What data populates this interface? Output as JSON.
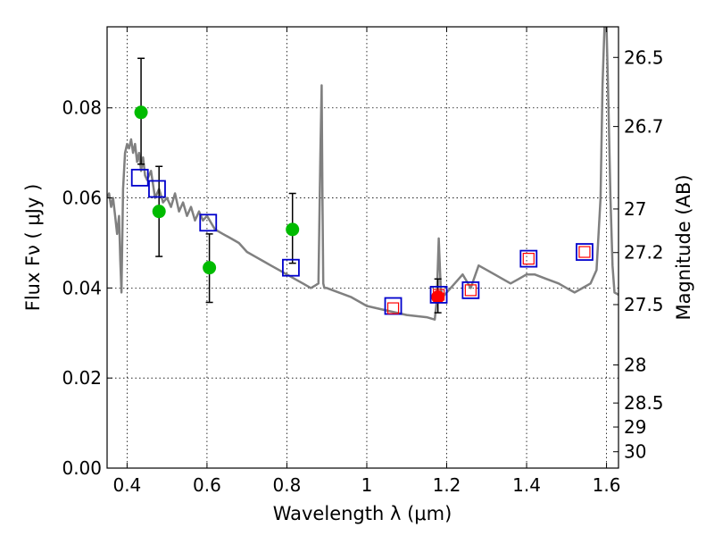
{
  "chart_data": {
    "type": "scatter",
    "xlabel": "Wavelength  λ (μm)",
    "ylabel": "Flux  Fν  ( μJy )",
    "ylabel_right": "Magnitude (AB)",
    "xlim": [
      0.35,
      1.63
    ],
    "ylim": [
      0.0,
      0.098
    ],
    "grid": true,
    "x_ticks": [
      {
        "value": 0.4,
        "label": "0.4"
      },
      {
        "value": 0.6,
        "label": "0.6"
      },
      {
        "value": 0.8,
        "label": "0.8"
      },
      {
        "value": 1.0,
        "label": "1"
      },
      {
        "value": 1.2,
        "label": "1.2"
      },
      {
        "value": 1.4,
        "label": "1.4"
      },
      {
        "value": 1.6,
        "label": "1.6"
      }
    ],
    "y_ticks": [
      {
        "value": 0.0,
        "label": "0.00"
      },
      {
        "value": 0.02,
        "label": "0.02"
      },
      {
        "value": 0.04,
        "label": "0.04"
      },
      {
        "value": 0.06,
        "label": "0.06"
      },
      {
        "value": 0.08,
        "label": "0.08"
      }
    ],
    "right_ticks": [
      {
        "value": 26.5,
        "label": "26.5"
      },
      {
        "value": 26.7,
        "label": "26.7"
      },
      {
        "value": 27.0,
        "label": "27"
      },
      {
        "value": 27.2,
        "label": "27.2"
      },
      {
        "value": 27.5,
        "label": "27.5"
      },
      {
        "value": 28.0,
        "label": "28"
      },
      {
        "value": 28.5,
        "label": "28.5"
      },
      {
        "value": 29.0,
        "label": "29"
      },
      {
        "value": 30.0,
        "label": "30"
      }
    ],
    "series": [
      {
        "name": "model_spectrum",
        "kind": "line",
        "color": "#808080",
        "x": [
          0.35,
          0.355,
          0.36,
          0.365,
          0.37,
          0.375,
          0.38,
          0.383,
          0.386,
          0.39,
          0.395,
          0.4,
          0.405,
          0.41,
          0.415,
          0.42,
          0.425,
          0.43,
          0.435,
          0.44,
          0.445,
          0.45,
          0.46,
          0.47,
          0.48,
          0.49,
          0.5,
          0.51,
          0.52,
          0.53,
          0.54,
          0.55,
          0.56,
          0.57,
          0.58,
          0.59,
          0.6,
          0.62,
          0.64,
          0.66,
          0.68,
          0.7,
          0.72,
          0.74,
          0.76,
          0.78,
          0.8,
          0.82,
          0.84,
          0.86,
          0.87,
          0.879,
          0.884,
          0.887,
          0.889,
          0.891,
          0.894,
          0.9,
          0.93,
          0.96,
          1.0,
          1.05,
          1.1,
          1.15,
          1.17,
          1.175,
          1.18,
          1.185,
          1.19,
          1.2,
          1.22,
          1.24,
          1.26,
          1.28,
          1.3,
          1.32,
          1.34,
          1.36,
          1.38,
          1.4,
          1.42,
          1.45,
          1.48,
          1.5,
          1.52,
          1.54,
          1.56,
          1.575,
          1.585,
          1.59,
          1.595,
          1.6,
          1.605,
          1.61,
          1.615,
          1.62,
          1.63
        ],
        "y": [
          0.06,
          0.061,
          0.058,
          0.06,
          0.056,
          0.052,
          0.056,
          0.046,
          0.039,
          0.062,
          0.07,
          0.072,
          0.071,
          0.073,
          0.07,
          0.072,
          0.068,
          0.07,
          0.066,
          0.069,
          0.065,
          0.064,
          0.066,
          0.06,
          0.062,
          0.059,
          0.06,
          0.058,
          0.061,
          0.057,
          0.059,
          0.056,
          0.058,
          0.055,
          0.057,
          0.055,
          0.056,
          0.053,
          0.052,
          0.051,
          0.05,
          0.048,
          0.047,
          0.046,
          0.045,
          0.044,
          0.043,
          0.042,
          0.041,
          0.04,
          0.0405,
          0.041,
          0.07,
          0.085,
          0.06,
          0.041,
          0.04,
          0.04,
          0.039,
          0.038,
          0.036,
          0.035,
          0.034,
          0.0335,
          0.033,
          0.037,
          0.051,
          0.04,
          0.038,
          0.039,
          0.041,
          0.043,
          0.04,
          0.045,
          0.044,
          0.043,
          0.042,
          0.041,
          0.042,
          0.043,
          0.043,
          0.042,
          0.041,
          0.04,
          0.039,
          0.04,
          0.041,
          0.044,
          0.06,
          0.085,
          0.098,
          0.098,
          0.08,
          0.06,
          0.045,
          0.039,
          0.0385
        ]
      },
      {
        "name": "observed_photometry",
        "kind": "points",
        "color": "#00bb00",
        "x": [
          0.435,
          0.48,
          0.606,
          0.814
        ],
        "y": [
          0.079,
          0.057,
          0.0445,
          0.053
        ],
        "yerr": [
          0.0115,
          0.0,
          0.0077,
          0.0075
        ],
        "yerr_upper": [
          0.012,
          0.0,
          0.0075,
          0.008
        ]
      },
      {
        "name": "observed_photometry_ir",
        "kind": "points",
        "color": "#ff0000",
        "x": [
          1.178
        ],
        "y": [
          0.038
        ],
        "yerr": [
          0.0035
        ],
        "yerr_upper": [
          0.004
        ]
      },
      {
        "name": "model_synthetic_photometry",
        "kind": "open_squares",
        "color": "#0000cc",
        "x": [
          0.432,
          0.475,
          0.603,
          0.81,
          1.066,
          1.18,
          1.26,
          1.405,
          1.545
        ],
        "y": [
          0.0645,
          0.062,
          0.0545,
          0.0445,
          0.036,
          0.0385,
          0.0395,
          0.0465,
          0.048
        ]
      },
      {
        "name": "ir_inner_squares",
        "kind": "open_squares_small",
        "color": "#ff0000",
        "x": [
          1.066,
          1.18,
          1.26,
          1.405,
          1.545
        ],
        "y": [
          0.0355,
          0.0385,
          0.0395,
          0.0465,
          0.048
        ]
      },
      {
        "name": "standalone_errorbar",
        "kind": "errorbar_only",
        "color": "#000000",
        "x": [
          0.48
        ],
        "y_low": [
          0.047
        ],
        "y_high": [
          0.067
        ]
      }
    ]
  }
}
